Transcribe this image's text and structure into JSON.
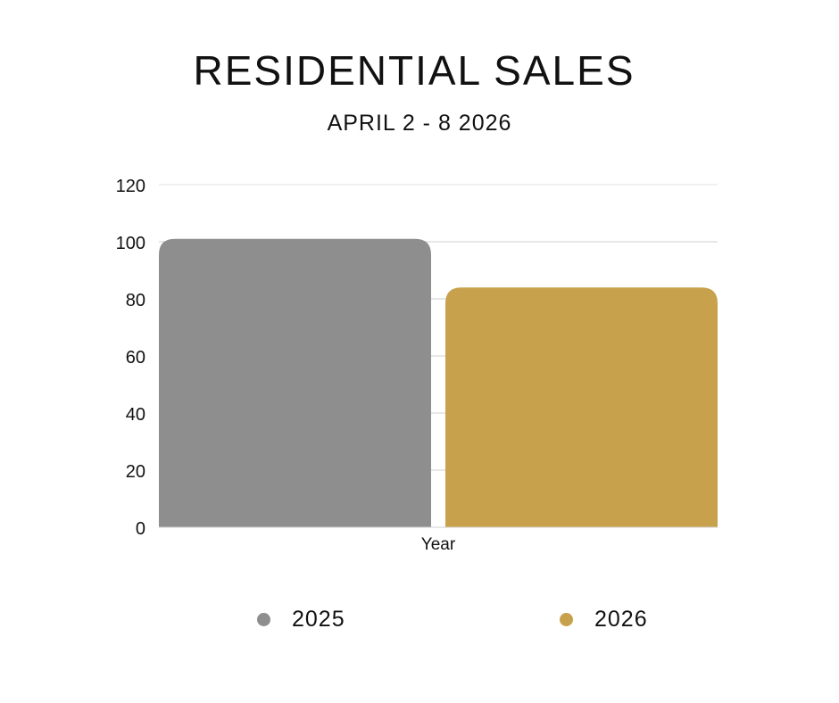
{
  "chart_data": {
    "type": "bar",
    "title": "RESIDENTIAL SALES",
    "subtitle": "APRIL 2 - 8 2026",
    "xlabel": "Year",
    "ylabel": "",
    "categories": [
      "Year"
    ],
    "series": [
      {
        "name": "2025",
        "values": [
          101
        ],
        "color": "#8e8e8e"
      },
      {
        "name": "2026",
        "values": [
          84
        ],
        "color": "#c8a14d"
      }
    ],
    "ylim": [
      0,
      120
    ],
    "yticks": [
      0,
      20,
      40,
      60,
      80,
      100,
      120
    ],
    "grid": true,
    "legend_position": "bottom"
  }
}
